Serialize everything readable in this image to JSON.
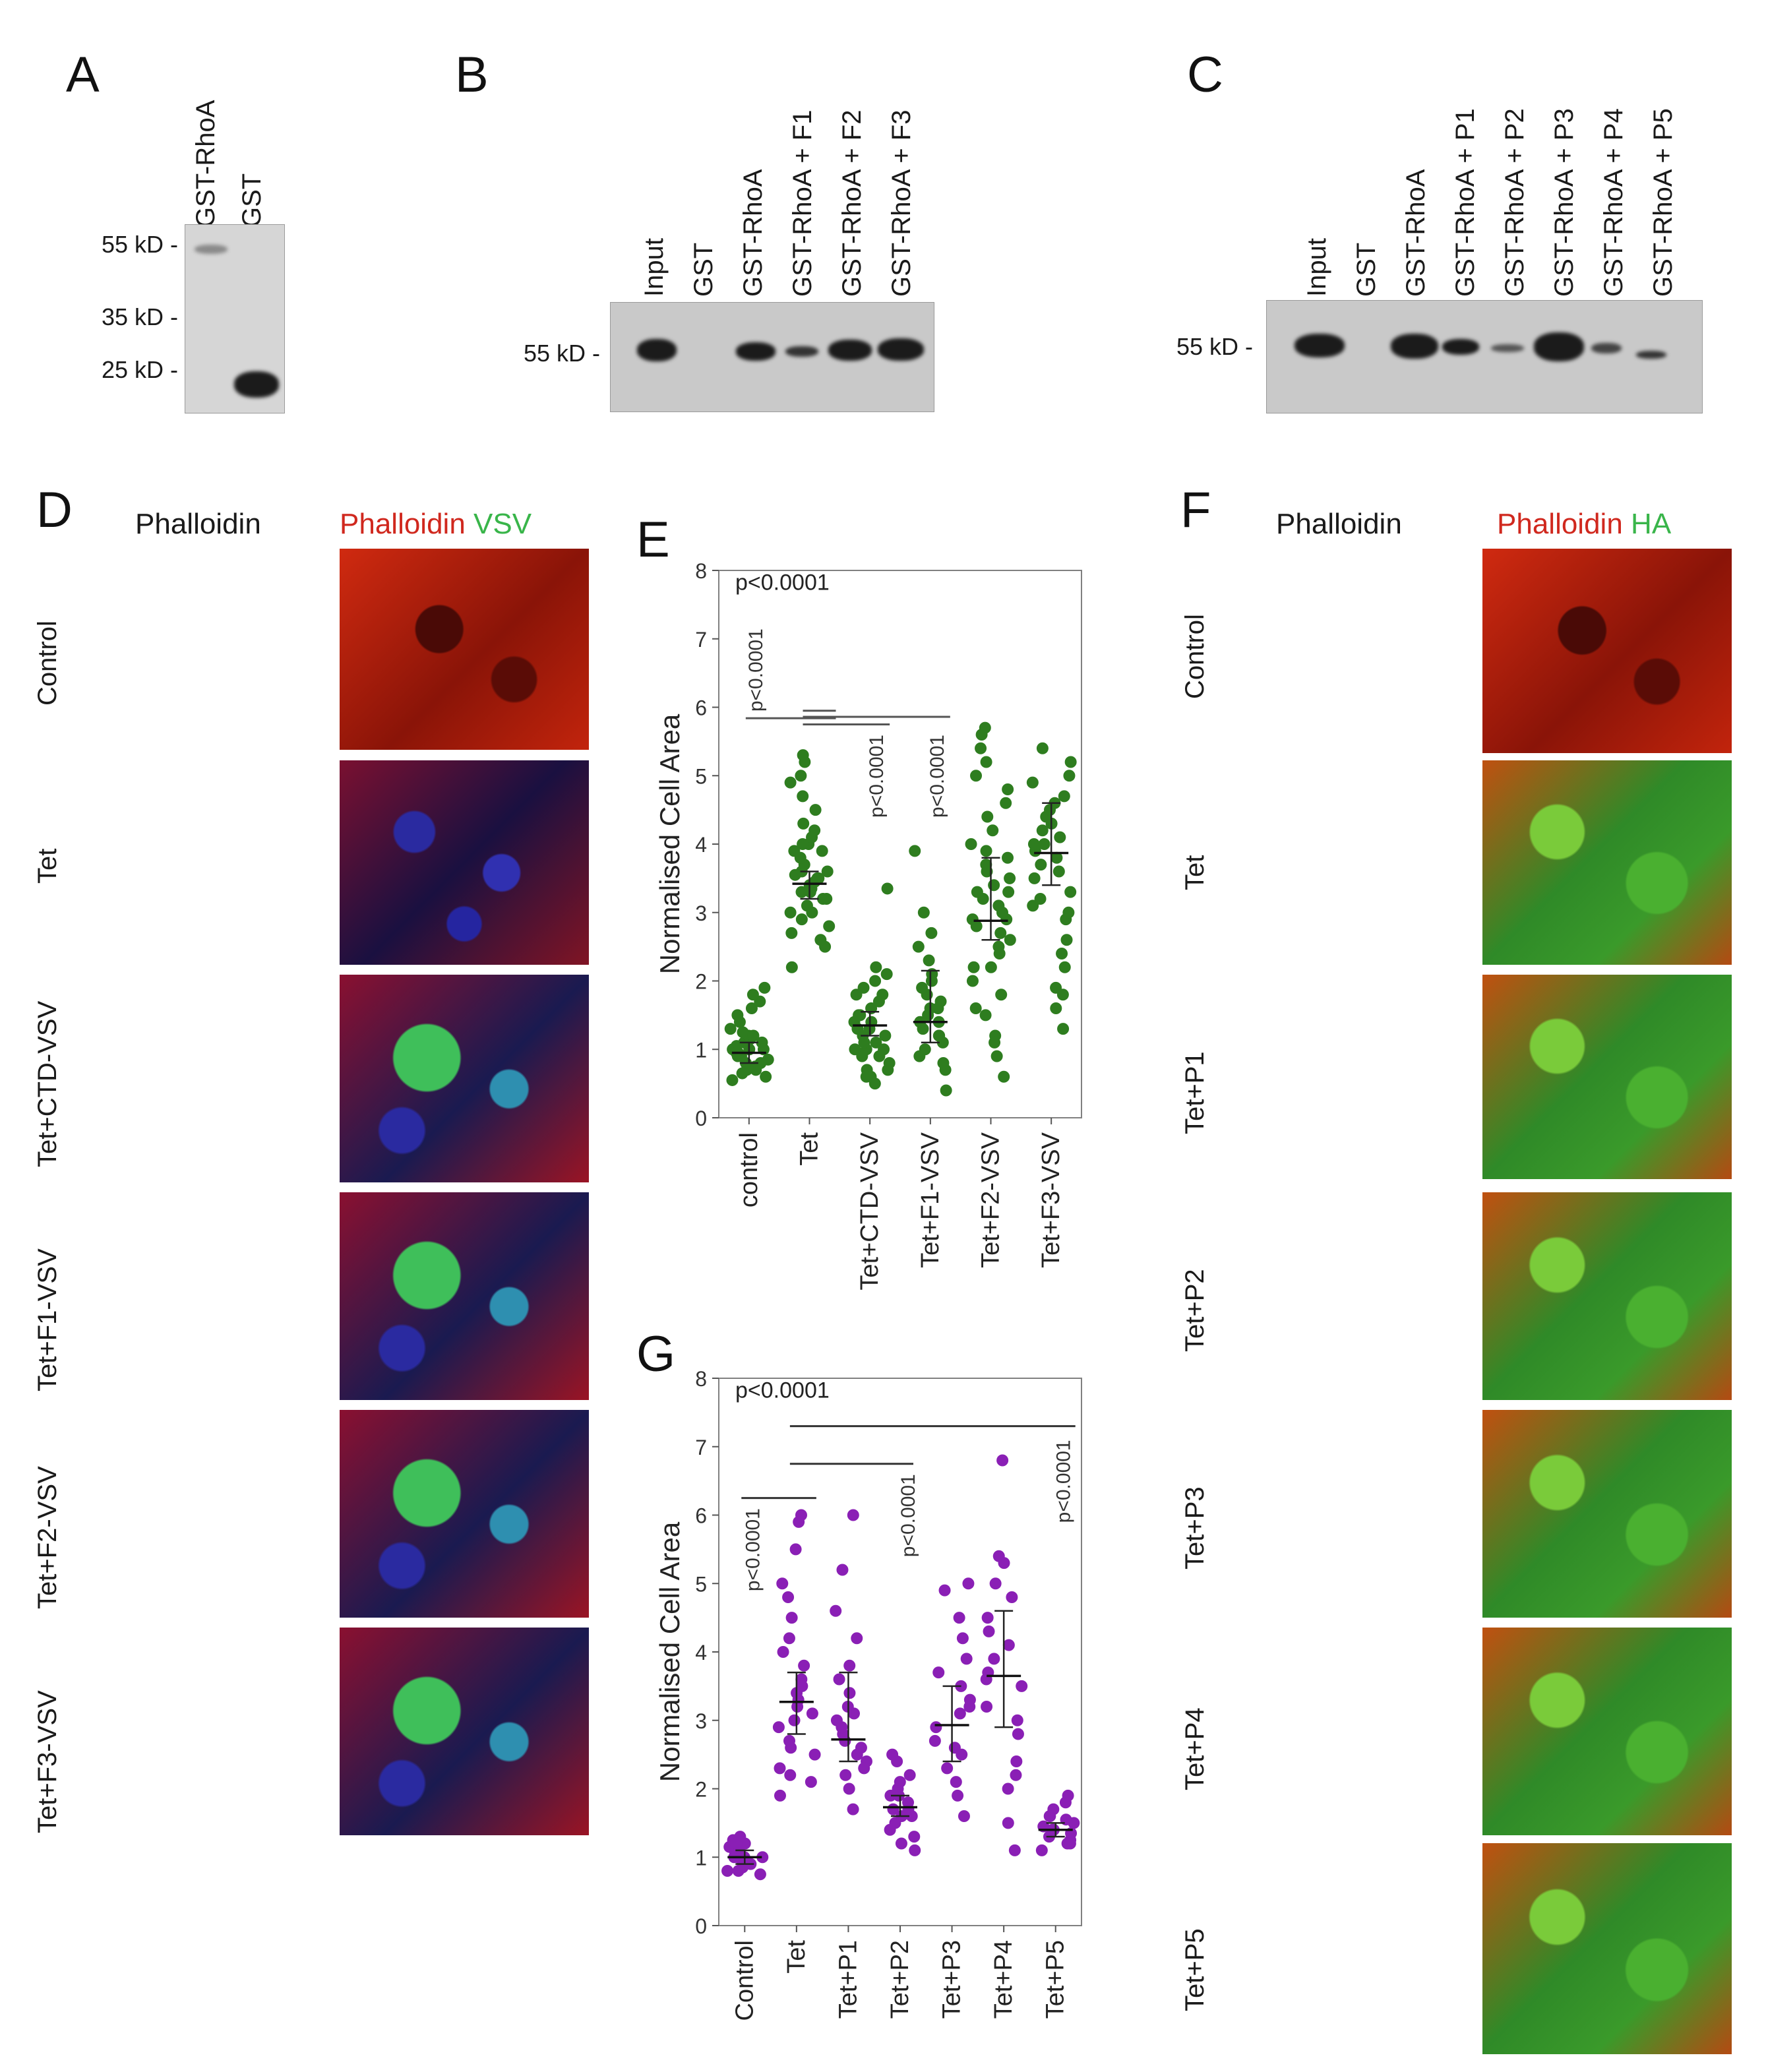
{
  "panels": {
    "A": {
      "letter": "A",
      "lanes": [
        "GST-RhoA",
        "GST"
      ],
      "markers": [
        "55 kD -",
        "35 kD -",
        "25 kD -"
      ]
    },
    "B": {
      "letter": "B",
      "lanes": [
        "Input",
        "GST",
        "GST-RhoA",
        "GST-RhoA + F1",
        "GST-RhoA + F2",
        "GST-RhoA + F3"
      ],
      "marker": "55 kD -"
    },
    "C": {
      "letter": "C",
      "lanes": [
        "Input",
        "GST",
        "GST-RhoA",
        "GST-RhoA + P1",
        "GST-RhoA + P2",
        "GST-RhoA + P3",
        "GST-RhoA + P4",
        "GST-RhoA + P5"
      ],
      "marker": "55 kD -"
    },
    "D": {
      "letter": "D",
      "col1": "Phalloidin",
      "col2_red": "Phalloidin",
      "col2_green": "VSV",
      "rows": [
        "Control",
        "Tet",
        "Tet+CTD-VSV",
        "Tet+F1-VSV",
        "Tet+F2-VSV",
        "Tet+F3-VSV"
      ]
    },
    "F": {
      "letter": "F",
      "col1": "Phalloidin",
      "col2_red": "Phalloidin",
      "col2_green": "HA",
      "rows": [
        "Control",
        "Tet",
        "Tet+P1",
        "Tet+P2",
        "Tet+P3",
        "Tet+P4",
        "Tet+P5"
      ]
    },
    "E": {
      "letter": "E"
    },
    "G": {
      "letter": "G"
    }
  },
  "colors": {
    "green_series": "#2e7d1f",
    "purple_series": "#8a1fb5",
    "red_text": "#d0281e",
    "green_text": "#39b54a"
  },
  "chart_data": [
    {
      "type": "scatter",
      "panel": "E",
      "ylabel": "Normalised Cell Area",
      "ylim": [
        0,
        8
      ],
      "yticks": [
        0,
        1,
        2,
        3,
        4,
        5,
        6,
        7,
        8
      ],
      "categories": [
        "control",
        "Tet",
        "Tet+CTD-VSV",
        "Tet+F1-VSV",
        "Tet+F2-VSV",
        "Tet+F3-VSV"
      ],
      "series": [
        {
          "values": [
            [
              0.6,
              0.65,
              0.7,
              0.75,
              0.8,
              0.85,
              0.9,
              0.9,
              0.95,
              1.0,
              1.0,
              1.05,
              1.1,
              1.15,
              1.2,
              1.25,
              1.3,
              1.4,
              1.5,
              1.6,
              1.7,
              1.8,
              1.9,
              0.55,
              0.7,
              0.95,
              1.1,
              1.2,
              0.8,
              1.0
            ],
            [
              2.2,
              2.5,
              2.7,
              2.8,
              2.9,
              3.0,
              3.1,
              3.2,
              3.3,
              3.35,
              3.4,
              3.45,
              3.5,
              3.55,
              3.6,
              3.7,
              3.8,
              3.9,
              4.0,
              4.1,
              4.2,
              4.3,
              4.5,
              4.7,
              4.9,
              5.0,
              5.2,
              5.3,
              3.0,
              3.3,
              3.5,
              3.6,
              2.6,
              3.9,
              4.0,
              3.2
            ],
            [
              0.5,
              0.6,
              0.7,
              0.8,
              0.9,
              1.0,
              1.0,
              1.1,
              1.2,
              1.3,
              1.3,
              1.4,
              1.5,
              1.6,
              1.7,
              1.8,
              1.9,
              2.0,
              2.1,
              2.2,
              0.7,
              0.9,
              1.1,
              1.2,
              1.4,
              3.35,
              0.6,
              1.0,
              1.5,
              1.8
            ],
            [
              0.4,
              0.7,
              0.9,
              1.0,
              1.1,
              1.2,
              1.3,
              1.4,
              1.4,
              1.5,
              1.6,
              1.7,
              1.8,
              1.9,
              2.0,
              2.1,
              2.3,
              2.5,
              2.7,
              3.0,
              3.9,
              1.2,
              0.8,
              1.6
            ],
            [
              0.6,
              0.9,
              1.2,
              1.5,
              1.8,
              2.0,
              2.2,
              2.4,
              2.6,
              2.7,
              2.8,
              2.9,
              3.0,
              3.1,
              3.2,
              3.3,
              3.4,
              3.5,
              3.6,
              3.7,
              3.8,
              3.9,
              4.0,
              4.2,
              4.4,
              4.6,
              4.8,
              5.0,
              5.2,
              5.4,
              5.6,
              5.7,
              2.5,
              2.9,
              3.3,
              1.1,
              1.6,
              2.2
            ],
            [
              1.3,
              1.6,
              1.9,
              2.2,
              2.6,
              2.9,
              3.1,
              3.3,
              3.5,
              3.7,
              3.8,
              3.9,
              4.0,
              4.1,
              4.2,
              4.3,
              4.4,
              4.5,
              4.7,
              4.9,
              5.0,
              5.2,
              5.4,
              2.4,
              3.0,
              3.6,
              4.6,
              1.8,
              3.2,
              4.0
            ]
          ],
          "medians": [
            0.95,
            3.42,
            1.35,
            1.4,
            2.88,
            3.87
          ],
          "ci_low": [
            0.8,
            3.2,
            1.2,
            1.1,
            2.6,
            3.4
          ],
          "ci_high": [
            1.1,
            3.6,
            1.55,
            2.15,
            3.8,
            4.6
          ]
        }
      ],
      "annotations": [
        "p<0.0001",
        "p<0.0001",
        "p<0.0001",
        "p<0.0001"
      ]
    },
    {
      "type": "scatter",
      "panel": "G",
      "ylabel": "Normalised Cell Area",
      "ylim": [
        0,
        8
      ],
      "yticks": [
        0,
        1,
        2,
        3,
        4,
        5,
        6,
        7,
        8
      ],
      "categories": [
        "Control",
        "Tet",
        "Tet+P1",
        "Tet+P2",
        "Tet+P3",
        "Tet+P4",
        "Tet+P5"
      ],
      "series": [
        {
          "values": [
            [
              0.75,
              0.8,
              0.85,
              0.9,
              0.95,
              1.0,
              1.0,
              1.05,
              1.1,
              1.15,
              1.2,
              1.25,
              1.3,
              0.9,
              1.0,
              1.1,
              0.8,
              1.2
            ],
            [
              1.9,
              2.1,
              2.3,
              2.5,
              2.7,
              2.9,
              3.0,
              3.1,
              3.2,
              3.3,
              3.4,
              3.6,
              3.8,
              4.0,
              4.2,
              4.5,
              4.8,
              5.0,
              5.5,
              5.9,
              6.0,
              2.6,
              3.5,
              2.2
            ],
            [
              1.7,
              2.0,
              2.2,
              2.4,
              2.5,
              2.6,
              2.7,
              2.8,
              2.9,
              3.0,
              3.2,
              3.4,
              3.6,
              3.8,
              4.2,
              4.6,
              5.2,
              6.0,
              2.3,
              3.1
            ],
            [
              1.1,
              1.3,
              1.4,
              1.5,
              1.6,
              1.7,
              1.7,
              1.8,
              1.9,
              2.0,
              2.1,
              2.2,
              2.4,
              2.5,
              1.2,
              1.6,
              1.9
            ],
            [
              1.6,
              1.9,
              2.1,
              2.3,
              2.5,
              2.7,
              2.9,
              3.1,
              3.3,
              3.5,
              3.7,
              3.9,
              4.2,
              4.5,
              4.9,
              5.0,
              2.6,
              3.2
            ],
            [
              1.1,
              1.5,
              2.0,
              2.4,
              2.8,
              3.0,
              3.2,
              3.5,
              3.7,
              3.9,
              4.1,
              4.3,
              4.5,
              4.8,
              5.0,
              5.3,
              5.4,
              6.8,
              2.2,
              3.6
            ],
            [
              1.1,
              1.2,
              1.25,
              1.3,
              1.35,
              1.4,
              1.45,
              1.5,
              1.55,
              1.6,
              1.7,
              1.8,
              1.9,
              1.2,
              1.4,
              1.6
            ]
          ],
          "medians": [
            1.0,
            3.27,
            2.72,
            1.73,
            2.93,
            3.65,
            1.4
          ],
          "ci_low": [
            0.9,
            2.8,
            2.4,
            1.6,
            2.4,
            2.9,
            1.3
          ],
          "ci_high": [
            1.1,
            3.7,
            3.7,
            1.9,
            3.5,
            4.6,
            1.5
          ]
        }
      ],
      "annotations": [
        "p<0.0001",
        "p<0.0001",
        "p<0.0001",
        "p<0.0001"
      ]
    }
  ]
}
